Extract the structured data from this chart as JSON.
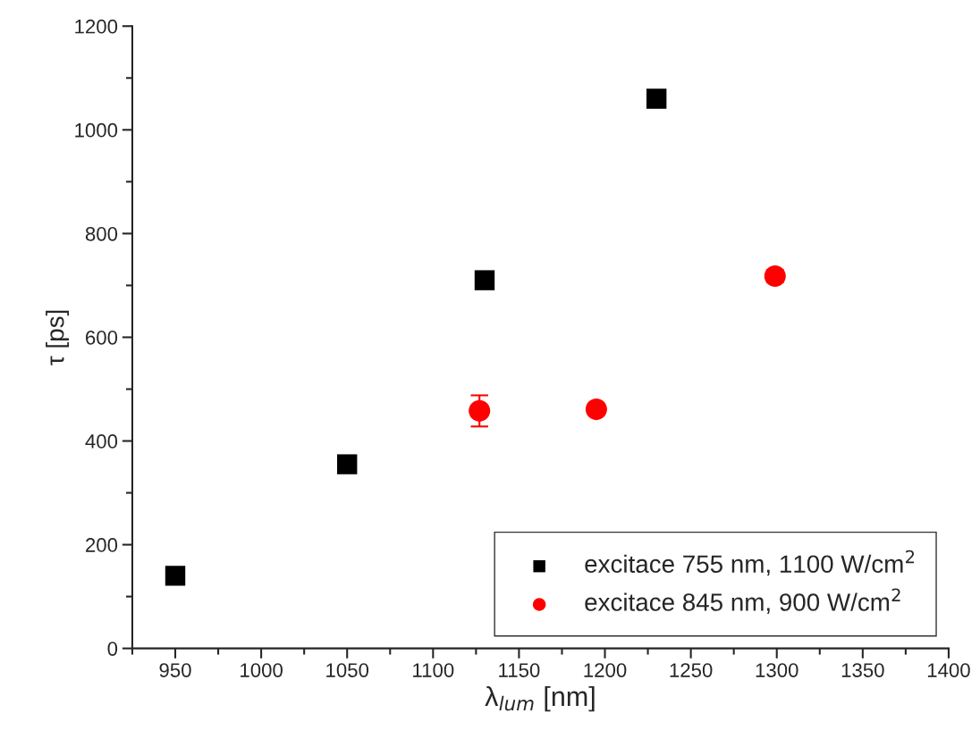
{
  "chart_data": {
    "type": "scatter",
    "xlabel": "λ$_{lum}$ [nm]",
    "ylabel": "τ [ps]",
    "xlim": [
      925,
      1400
    ],
    "xticks": [
      950,
      1000,
      1050,
      1100,
      1150,
      1200,
      1250,
      1300,
      1350,
      1400
    ],
    "ylim": [
      0,
      1200
    ],
    "yticks": [
      0,
      200,
      400,
      600,
      800,
      1000,
      1200
    ],
    "grid": false,
    "legend": "bottom right",
    "series": [
      {
        "name": "excitace 755 nm, 1100 W/cm$^{2}$",
        "color": "#000000",
        "marker": "square",
        "x": [
          950,
          1050,
          1130,
          1230
        ],
        "values": [
          140,
          355,
          710,
          1060
        ]
      },
      {
        "name": "excitace 845 nm, 900 W/cm$^{2}$",
        "color": "#ff0000",
        "marker": "circle",
        "x": [
          1127,
          1195,
          1299
        ],
        "values": [
          458,
          461,
          718
        ],
        "errors": [
          30,
          null,
          12
        ]
      }
    ]
  }
}
